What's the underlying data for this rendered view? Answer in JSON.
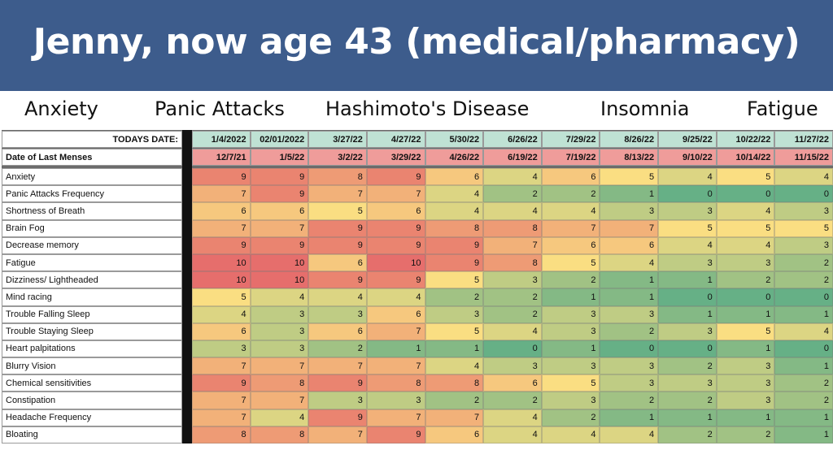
{
  "header": {
    "title": "Jenny, now age 43 (medical/pharmacy)"
  },
  "conditions": [
    "Anxiety",
    "Panic Attacks",
    "Hashimoto's Disease",
    "Insomnia",
    "Fatigue"
  ],
  "table": {
    "date_label": "TODAYS DATE:",
    "dates": [
      "1/4/2022",
      "02/01/2022",
      "3/27/22",
      "4/27/22",
      "5/30/22",
      "6/26/22",
      "7/29/22",
      "8/26/22",
      "9/25/22",
      "10/22/22",
      "11/27/22"
    ],
    "menses_label": "Date of Last Menses",
    "menses": [
      "12/7/21",
      "1/5/22",
      "3/2/22",
      "3/29/22",
      "4/26/22",
      "6/19/22",
      "7/19/22",
      "8/13/22",
      "9/10/22",
      "10/14/22",
      "11/15/22"
    ],
    "rows": [
      {
        "label": "Anxiety",
        "values": [
          9,
          9,
          8,
          9,
          6,
          4,
          6,
          5,
          4,
          5,
          4
        ]
      },
      {
        "label": "Panic Attacks Frequency",
        "values": [
          7,
          9,
          7,
          7,
          4,
          2,
          2,
          1,
          0,
          0,
          0
        ]
      },
      {
        "label": "Shortness of Breath",
        "values": [
          6,
          6,
          5,
          6,
          4,
          4,
          4,
          3,
          3,
          4,
          3
        ]
      },
      {
        "label": "Brain Fog",
        "values": [
          7,
          7,
          9,
          9,
          8,
          8,
          7,
          7,
          5,
          5,
          5
        ]
      },
      {
        "label": "Decrease memory",
        "values": [
          9,
          9,
          9,
          9,
          9,
          7,
          6,
          6,
          4,
          4,
          3
        ]
      },
      {
        "label": "Fatigue",
        "values": [
          10,
          10,
          6,
          10,
          9,
          8,
          5,
          4,
          3,
          3,
          2
        ]
      },
      {
        "label": "Dizziness/ Lightheaded",
        "values": [
          10,
          10,
          9,
          9,
          5,
          3,
          2,
          1,
          1,
          2,
          2
        ]
      },
      {
        "label": "Mind racing",
        "values": [
          5,
          4,
          4,
          4,
          2,
          2,
          1,
          1,
          0,
          0,
          0
        ]
      },
      {
        "label": "Trouble Falling Sleep",
        "values": [
          4,
          3,
          3,
          6,
          3,
          2,
          3,
          3,
          1,
          1,
          1
        ]
      },
      {
        "label": "Trouble Staying Sleep",
        "values": [
          6,
          3,
          6,
          7,
          5,
          4,
          3,
          2,
          3,
          5,
          4
        ]
      },
      {
        "label": "Heart palpitations",
        "values": [
          3,
          3,
          2,
          1,
          1,
          0,
          1,
          0,
          0,
          1,
          0
        ]
      },
      {
        "label": "Blurry Vision",
        "values": [
          7,
          7,
          7,
          7,
          4,
          3,
          3,
          3,
          2,
          3,
          1
        ]
      },
      {
        "label": "Chemical sensitivities",
        "values": [
          9,
          8,
          9,
          8,
          8,
          6,
          5,
          3,
          3,
          3,
          2
        ]
      },
      {
        "label": "Constipation",
        "values": [
          7,
          7,
          3,
          3,
          2,
          2,
          3,
          2,
          2,
          3,
          2
        ]
      },
      {
        "label": "Headache Frequency",
        "values": [
          7,
          4,
          9,
          7,
          7,
          4,
          2,
          1,
          1,
          1,
          1
        ]
      },
      {
        "label": "Bloating",
        "values": [
          8,
          8,
          7,
          9,
          6,
          4,
          4,
          4,
          2,
          2,
          1
        ]
      }
    ]
  }
}
